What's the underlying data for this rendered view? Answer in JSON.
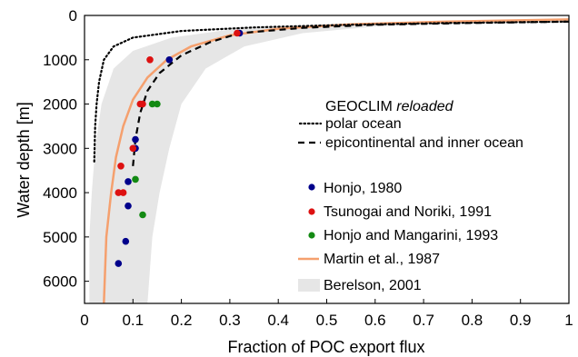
{
  "chart_data": {
    "type": "scatter",
    "xlabel": "Fraction of POC export flux",
    "ylabel": "Water depth [m]",
    "xlim": [
      0,
      1
    ],
    "ylim": [
      0,
      6500
    ],
    "y_inverted": true,
    "x_ticks": [
      "0",
      "0.1",
      "0.2",
      "0.3",
      "0.4",
      "0.5",
      "0.6",
      "0.7",
      "0.8",
      "0.9",
      "1"
    ],
    "x_tick_values": [
      0,
      0.1,
      0.2,
      0.3,
      0.4,
      0.5,
      0.6,
      0.7,
      0.8,
      0.9,
      1
    ],
    "y_ticks": [
      "0",
      "1000",
      "2000",
      "3000",
      "4000",
      "5000",
      "6000"
    ],
    "y_tick_values": [
      0,
      1000,
      2000,
      3000,
      4000,
      5000,
      6000
    ],
    "grid": false,
    "legend_position": "right",
    "model_legend": {
      "title": "GEOCLIM",
      "title_italic": "reloaded",
      "entries": [
        {
          "label": "polar ocean",
          "style": "dotted"
        },
        {
          "label": "epicontinental and inner ocean",
          "style": "dashed"
        }
      ]
    },
    "series": [
      {
        "name": "Honjo, 1980",
        "kind": "points",
        "color": "#00008b",
        "points": [
          [
            0.32,
            400
          ],
          [
            0.175,
            1000
          ],
          [
            0.105,
            2800
          ],
          [
            0.105,
            3000
          ],
          [
            0.09,
            3750
          ],
          [
            0.09,
            4300
          ],
          [
            0.085,
            5100
          ],
          [
            0.07,
            5600
          ]
        ]
      },
      {
        "name": "Tsunogai and Noriki, 1991",
        "kind": "points",
        "color": "#dd1111",
        "points": [
          [
            0.315,
            400
          ],
          [
            0.135,
            1000
          ],
          [
            0.115,
            2000
          ],
          [
            0.12,
            2000
          ],
          [
            0.1,
            3000
          ],
          [
            0.075,
            3400
          ],
          [
            0.07,
            4000
          ],
          [
            0.08,
            4000
          ]
        ]
      },
      {
        "name": "Honjo and Mangarini, 1993",
        "kind": "points",
        "color": "#138a13",
        "points": [
          [
            0.14,
            2000
          ],
          [
            0.15,
            2000
          ],
          [
            0.105,
            3700
          ],
          [
            0.12,
            4500
          ]
        ]
      },
      {
        "name": "Martin et al., 1987",
        "kind": "line",
        "color": "#f5a06e",
        "points": [
          [
            0.04,
            6500
          ],
          [
            0.045,
            5000
          ],
          [
            0.055,
            4000
          ],
          [
            0.065,
            3200
          ],
          [
            0.08,
            2500
          ],
          [
            0.1,
            1900
          ],
          [
            0.13,
            1400
          ],
          [
            0.17,
            1000
          ],
          [
            0.22,
            700
          ],
          [
            0.3,
            450
          ],
          [
            0.4,
            300
          ],
          [
            0.55,
            200
          ],
          [
            0.75,
            140
          ],
          [
            1.0,
            90
          ]
        ]
      },
      {
        "name": "Berelson, 2001",
        "kind": "band",
        "color": "#e6e6e6",
        "left": [
          [
            0.01,
            6500
          ],
          [
            0.01,
            5000
          ],
          [
            0.015,
            4000
          ],
          [
            0.022,
            3000
          ],
          [
            0.035,
            2000
          ],
          [
            0.06,
            1200
          ],
          [
            0.1,
            800
          ],
          [
            0.18,
            500
          ],
          [
            0.3,
            320
          ],
          [
            0.5,
            200
          ],
          [
            0.75,
            140
          ],
          [
            1.0,
            100
          ]
        ],
        "right": [
          [
            0.13,
            6500
          ],
          [
            0.14,
            5000
          ],
          [
            0.155,
            4000
          ],
          [
            0.175,
            3000
          ],
          [
            0.2,
            2000
          ],
          [
            0.25,
            1200
          ],
          [
            0.33,
            700
          ],
          [
            0.45,
            400
          ],
          [
            0.6,
            250
          ],
          [
            0.8,
            160
          ],
          [
            1.0,
            120
          ]
        ]
      },
      {
        "name": "polar ocean",
        "kind": "line",
        "style": "dotted",
        "color": "#000000",
        "points": [
          [
            0.02,
            3300
          ],
          [
            0.022,
            2500
          ],
          [
            0.025,
            2000
          ],
          [
            0.03,
            1500
          ],
          [
            0.04,
            1000
          ],
          [
            0.06,
            700
          ],
          [
            0.1,
            500
          ],
          [
            0.2,
            350
          ],
          [
            0.35,
            270
          ],
          [
            0.55,
            210
          ],
          [
            0.75,
            170
          ],
          [
            1.0,
            140
          ]
        ]
      },
      {
        "name": "epicontinental and inner ocean",
        "kind": "line",
        "style": "dashed",
        "color": "#000000",
        "points": [
          [
            0.1,
            3400
          ],
          [
            0.105,
            2800
          ],
          [
            0.115,
            2200
          ],
          [
            0.13,
            1700
          ],
          [
            0.155,
            1300
          ],
          [
            0.2,
            900
          ],
          [
            0.26,
            600
          ],
          [
            0.32,
            400
          ],
          [
            0.45,
            280
          ],
          [
            0.6,
            210
          ],
          [
            0.8,
            170
          ],
          [
            1.0,
            140
          ]
        ]
      }
    ],
    "legend_entries": [
      {
        "label": "Honjo, 1980",
        "marker": "dot",
        "color": "#00008b"
      },
      {
        "label": "Tsunogai and Noriki, 1991",
        "marker": "dot",
        "color": "#dd1111"
      },
      {
        "label": "Honjo and Mangarini, 1993",
        "marker": "dot",
        "color": "#138a13"
      },
      {
        "label": "Martin et al., 1987",
        "marker": "line",
        "color": "#f5a06e"
      },
      {
        "label": "Berelson, 2001",
        "marker": "band",
        "color": "#e6e6e6"
      }
    ]
  }
}
